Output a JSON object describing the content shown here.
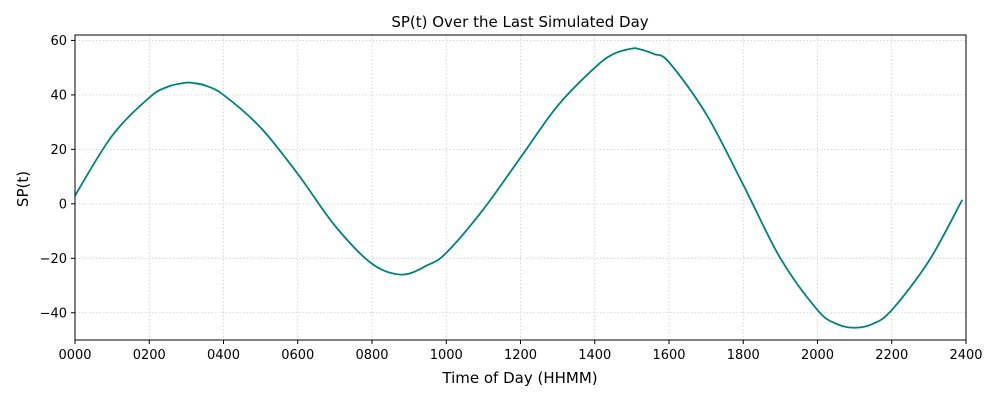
{
  "chart_data": {
    "type": "line",
    "title": "SP(t) Over the Last Simulated Day",
    "xlabel": "Time of Day (HHMM)",
    "ylabel": "SP(t)",
    "xlim": [
      0,
      2400
    ],
    "ylim": [
      -50,
      62
    ],
    "grid": true,
    "line_color": "#008080",
    "grid_color": "#cccccc",
    "x_ticks": [
      {
        "value": 0,
        "label": "0000"
      },
      {
        "value": 200,
        "label": "0200"
      },
      {
        "value": 400,
        "label": "0400"
      },
      {
        "value": 600,
        "label": "0600"
      },
      {
        "value": 800,
        "label": "0800"
      },
      {
        "value": 1000,
        "label": "1000"
      },
      {
        "value": 1200,
        "label": "1200"
      },
      {
        "value": 1400,
        "label": "1400"
      },
      {
        "value": 1600,
        "label": "1600"
      },
      {
        "value": 1800,
        "label": "1800"
      },
      {
        "value": 2000,
        "label": "2000"
      },
      {
        "value": 2200,
        "label": "2200"
      },
      {
        "value": 2400,
        "label": "2400"
      }
    ],
    "y_ticks": [
      {
        "value": 60,
        "label": "60"
      },
      {
        "value": 40,
        "label": "40"
      },
      {
        "value": 20,
        "label": "20"
      },
      {
        "value": 0,
        "label": "0"
      },
      {
        "value": -20,
        "label": "−20"
      },
      {
        "value": -40,
        "label": "−40"
      }
    ],
    "series": [
      {
        "x": [
          0,
          100,
          200,
          250,
          300,
          320,
          350,
          400,
          500,
          600,
          700,
          800,
          880,
          950,
          1000,
          1100,
          1200,
          1300,
          1400,
          1450,
          1500,
          1520,
          1560,
          1600,
          1700,
          1800,
          1900,
          2000,
          2050,
          2100,
          2150,
          2200,
          2300,
          2390
        ],
        "y": [
          3,
          25,
          39,
          43,
          44.5,
          44.3,
          43.5,
          40,
          28,
          11,
          -8,
          -22,
          -26,
          -22.5,
          -18,
          -2,
          17,
          36,
          50,
          55,
          57,
          56.8,
          55,
          52,
          33,
          7,
          -20,
          -39,
          -44,
          -45.5,
          -44,
          -39,
          -21,
          1.5
        ]
      }
    ]
  }
}
